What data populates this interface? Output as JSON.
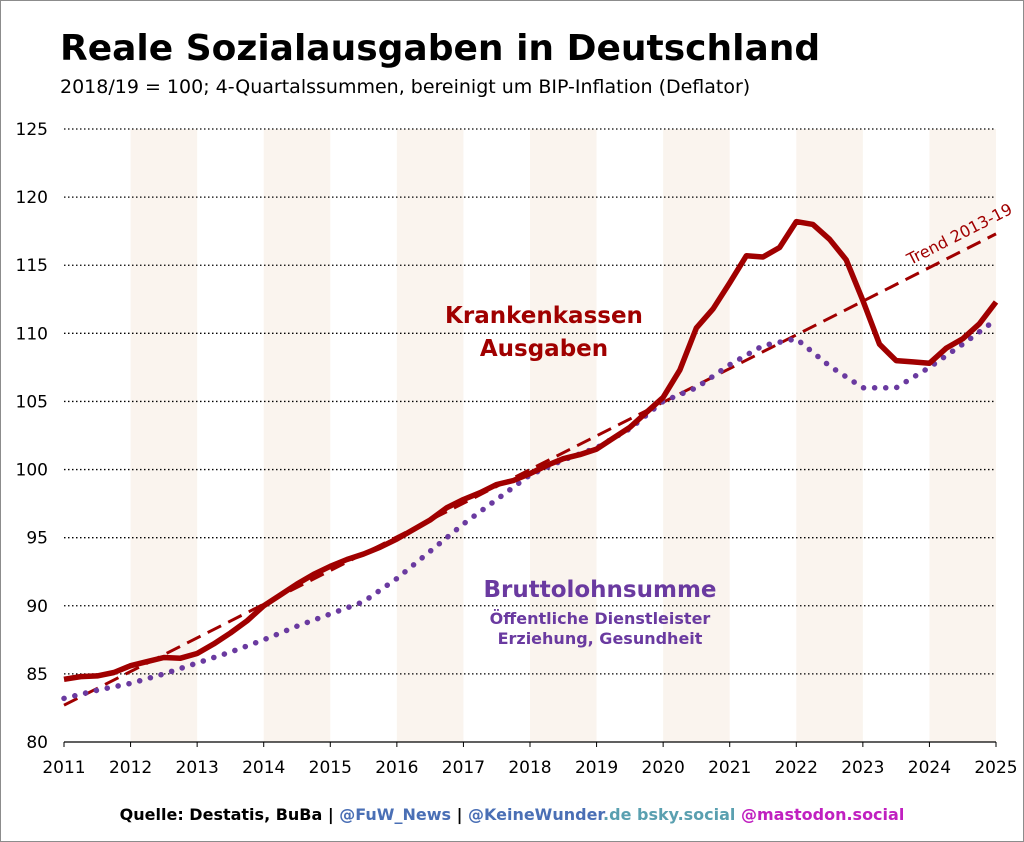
{
  "title": "Reale Sozialausgaben in Deutschland",
  "subtitle": "2018/19 = 100; 4-Quartalssummen, bereinigt um BIP-Inflation (Deflator)",
  "chart_data": {
    "type": "line",
    "title": "Reale Sozialausgaben in Deutschland",
    "subtitle": "2018/19 = 100; 4-Quartalssummen, bereinigt um BIP-Inflation (Deflator)",
    "xlim": [
      2011,
      2025
    ],
    "ylim": [
      80,
      125
    ],
    "x_ticks": [
      "2011",
      "2012",
      "2013",
      "2014",
      "2015",
      "2016",
      "2017",
      "2018",
      "2019",
      "2020",
      "2021",
      "2022",
      "2023",
      "2024",
      "2025"
    ],
    "y_ticks": [
      "80",
      "85",
      "90",
      "95",
      "100",
      "105",
      "110",
      "115",
      "120",
      "125"
    ],
    "grid": "horizontal dotted",
    "shaded_years": [
      2012,
      2014,
      2016,
      2018,
      2020,
      2022,
      2024
    ],
    "series": [
      {
        "name": "Krankenkassen Ausgaben",
        "label_lines": [
          "Krankenkassen",
          "Ausgaben"
        ],
        "style": "solid",
        "color": "#a00000",
        "x": [
          2011,
          2011.25,
          2011.5,
          2011.75,
          2012,
          2012.25,
          2012.5,
          2012.75,
          2013,
          2013.25,
          2013.5,
          2013.75,
          2014,
          2014.25,
          2014.5,
          2014.75,
          2015,
          2015.25,
          2015.5,
          2015.75,
          2016,
          2016.25,
          2016.5,
          2016.75,
          2017,
          2017.25,
          2017.5,
          2017.75,
          2018,
          2018.25,
          2018.5,
          2018.75,
          2019,
          2019.25,
          2019.5,
          2019.75,
          2020,
          2020.25,
          2020.5,
          2020.75,
          2021,
          2021.25,
          2021.5,
          2021.75,
          2022,
          2022.25,
          2022.5,
          2022.75,
          2023,
          2023.25,
          2023.5,
          2023.75,
          2024,
          2024.25,
          2024.5,
          2024.75,
          2025
        ],
        "y": [
          84.6,
          84.8,
          84.85,
          85.1,
          85.6,
          85.9,
          86.2,
          86.15,
          86.5,
          87.2,
          88.0,
          88.9,
          90.0,
          90.8,
          91.6,
          92.3,
          92.9,
          93.4,
          93.8,
          94.3,
          94.9,
          95.6,
          96.3,
          97.2,
          97.8,
          98.3,
          98.9,
          99.2,
          99.7,
          100.3,
          100.8,
          101.1,
          101.5,
          102.3,
          103.1,
          104.2,
          105.3,
          107.3,
          110.4,
          111.8,
          113.7,
          115.7,
          115.6,
          116.3,
          118.2,
          118.0,
          116.9,
          115.4,
          112.4,
          109.2,
          108.0,
          107.9,
          107.8,
          108.9,
          109.6,
          110.7,
          112.3
        ]
      },
      {
        "name": "Bruttolohnsumme",
        "label_lines": [
          "Bruttolohnsumme",
          "Öffentliche Dienstleister",
          "Erziehung, Gesundheit"
        ],
        "style": "dotted",
        "color": "#6a3aa0",
        "x": [
          2011,
          2011.5,
          2012,
          2012.5,
          2013,
          2013.5,
          2014,
          2014.5,
          2015,
          2015.5,
          2016,
          2016.5,
          2017,
          2017.5,
          2018,
          2018.5,
          2019,
          2019.5,
          2020,
          2020.5,
          2021,
          2021.5,
          2022,
          2022.5,
          2023,
          2023.5,
          2024,
          2024.5,
          2025
        ],
        "y": [
          83.2,
          83.8,
          84.3,
          85.0,
          85.8,
          86.6,
          87.5,
          88.5,
          89.4,
          90.3,
          92.0,
          94.0,
          96.0,
          97.8,
          99.6,
          100.7,
          101.6,
          103.0,
          105.0,
          106.0,
          107.7,
          109.1,
          109.6,
          107.6,
          106.0,
          106.0,
          107.5,
          109.2,
          111.0
        ]
      },
      {
        "name": "Trend 2013-19",
        "label_lines": [
          "Trend 2013-19"
        ],
        "style": "dashed",
        "color": "#a00000",
        "x": [
          2011,
          2025
        ],
        "y": [
          82.7,
          117.3
        ]
      }
    ]
  },
  "footer": {
    "source": "Quelle: Destatis, BuBa",
    "separator": " | ",
    "fuw": "@FuW_News",
    "kw_name": "@KeineWunder",
    "kw_tld": ".de",
    "bsky": " bsky.social",
    "mastodon": " @mastodon.social",
    "colors": {
      "source": "#000000",
      "fuw": "#4a6fb5",
      "kw_name": "#4a6fb5",
      "kw_tld": "#5aa0b0",
      "bsky": "#5aa0b0",
      "mastodon": "#c020c0"
    }
  }
}
